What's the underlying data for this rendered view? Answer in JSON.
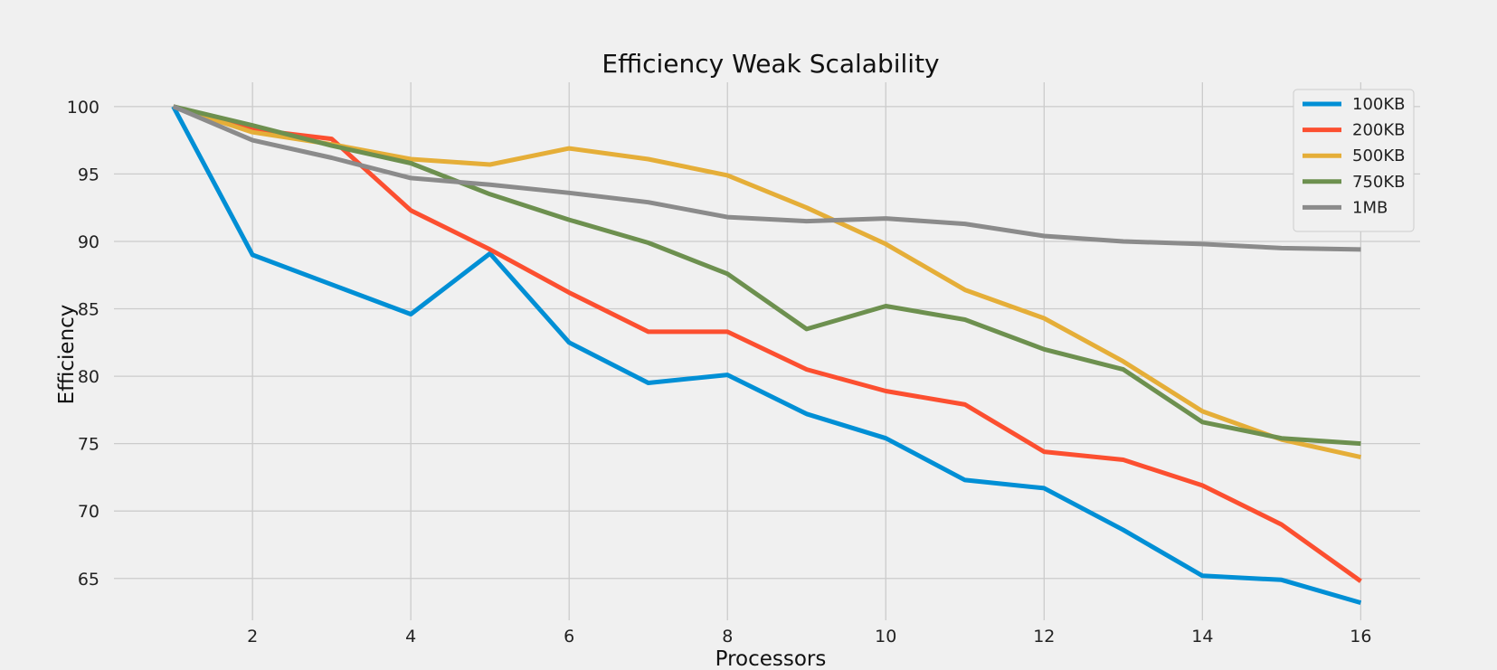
{
  "chart_data": {
    "type": "line",
    "title": "Efficiency Weak Scalability",
    "xlabel": "Processors",
    "ylabel": "Efficiency",
    "x": [
      1,
      2,
      3,
      4,
      5,
      6,
      7,
      8,
      9,
      10,
      11,
      12,
      13,
      14,
      15,
      16
    ],
    "xlim": [
      0.25,
      16.75
    ],
    "ylim": [
      61.9,
      101.8
    ],
    "xticks": [
      2,
      4,
      6,
      8,
      10,
      12,
      14,
      16
    ],
    "yticks": [
      65,
      70,
      75,
      80,
      85,
      90,
      95,
      100
    ],
    "grid": true,
    "legend_position": "upper right",
    "series": [
      {
        "name": "100KB",
        "color": "#008fd5",
        "values": [
          100,
          89.0,
          86.8,
          84.6,
          89.1,
          82.5,
          79.5,
          80.1,
          77.2,
          75.4,
          72.3,
          71.7,
          68.6,
          65.2,
          64.9,
          63.2
        ]
      },
      {
        "name": "200KB",
        "color": "#fc4f30",
        "values": [
          100,
          98.3,
          97.6,
          92.3,
          89.4,
          86.2,
          83.3,
          83.3,
          80.5,
          78.9,
          77.9,
          74.4,
          73.8,
          71.9,
          69.0,
          64.8
        ]
      },
      {
        "name": "500KB",
        "color": "#e5ae38",
        "values": [
          100,
          98.1,
          97.2,
          96.1,
          95.7,
          96.9,
          96.1,
          94.9,
          92.5,
          89.8,
          86.4,
          84.3,
          81.1,
          77.4,
          75.3,
          74.0
        ]
      },
      {
        "name": "750KB",
        "color": "#6d904f",
        "values": [
          100,
          98.6,
          97.1,
          95.8,
          93.5,
          91.6,
          89.9,
          87.6,
          83.5,
          85.2,
          84.2,
          82.0,
          80.5,
          76.6,
          75.4,
          75.0
        ]
      },
      {
        "name": "1MB",
        "color": "#8b8b8b",
        "values": [
          100,
          97.5,
          96.2,
          94.7,
          94.2,
          93.6,
          92.9,
          91.8,
          91.5,
          91.7,
          91.3,
          90.4,
          90.0,
          89.8,
          89.5,
          89.4
        ]
      }
    ]
  }
}
